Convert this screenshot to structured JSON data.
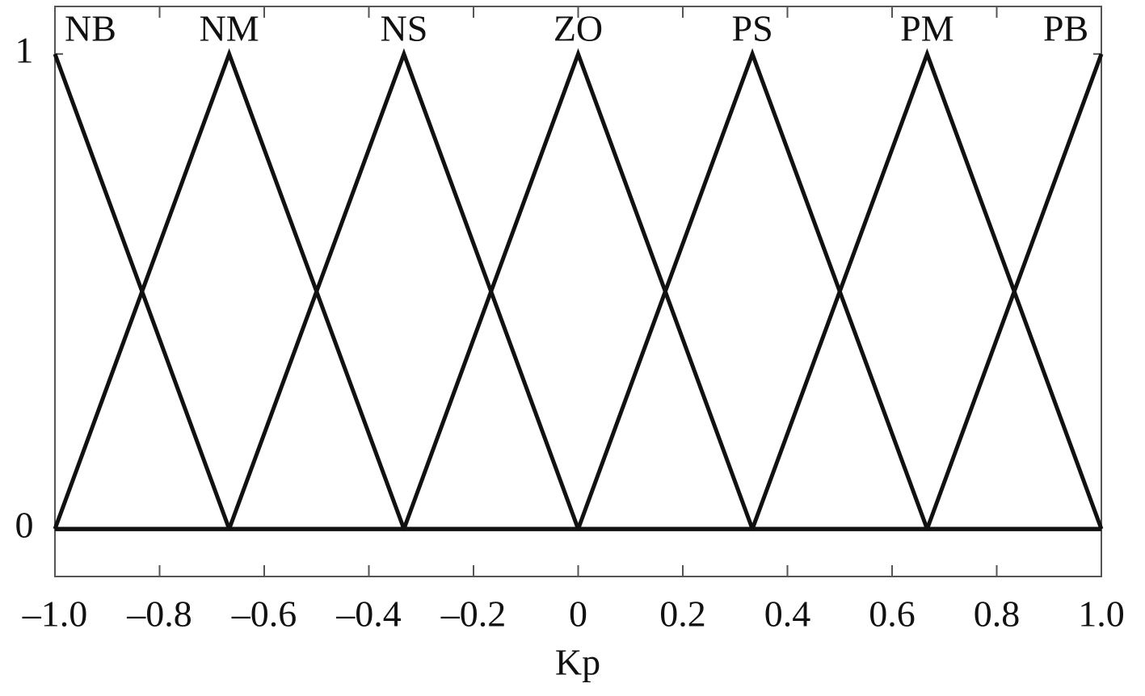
{
  "chart_data": {
    "type": "line",
    "x_label": "Kp",
    "color": "#111111",
    "xlim": [
      -1,
      1
    ],
    "ylim": [
      -0.1,
      1.1
    ],
    "xticks": [
      {
        "value": -1,
        "label": "–1.0"
      },
      {
        "value": -0.8,
        "label": "–0.8"
      },
      {
        "value": -0.6,
        "label": "–0.6"
      },
      {
        "value": -0.4,
        "label": "–0.4"
      },
      {
        "value": -0.2,
        "label": "–0.2"
      },
      0,
      0.2,
      0.4,
      0.6,
      0.8,
      {
        "value": 1,
        "label": "1.0"
      }
    ],
    "yticks": [
      0,
      1
    ],
    "series": [
      {
        "name": "NB",
        "x": [
          -1,
          -0.667,
          1
        ],
        "values": [
          1,
          0,
          0
        ]
      },
      {
        "name": "NM",
        "x": [
          -1,
          -0.667,
          -0.333,
          1
        ],
        "values": [
          0,
          1,
          0,
          0
        ]
      },
      {
        "name": "NS",
        "x": [
          -1,
          -0.667,
          -0.333,
          0,
          1
        ],
        "values": [
          0,
          0,
          1,
          0,
          0
        ]
      },
      {
        "name": "ZO",
        "x": [
          -1,
          -0.333,
          0,
          0.333,
          1
        ],
        "values": [
          0,
          0,
          1,
          0,
          0
        ]
      },
      {
        "name": "PS",
        "x": [
          -1,
          0,
          0.333,
          0.667,
          1
        ],
        "values": [
          0,
          0,
          1,
          0,
          0
        ]
      },
      {
        "name": "PM",
        "x": [
          -1,
          0.333,
          0.667,
          1
        ],
        "values": [
          0,
          0,
          1,
          0
        ]
      },
      {
        "name": "PB",
        "x": [
          -1,
          0.667,
          1
        ],
        "values": [
          0,
          0,
          1
        ]
      }
    ]
  }
}
